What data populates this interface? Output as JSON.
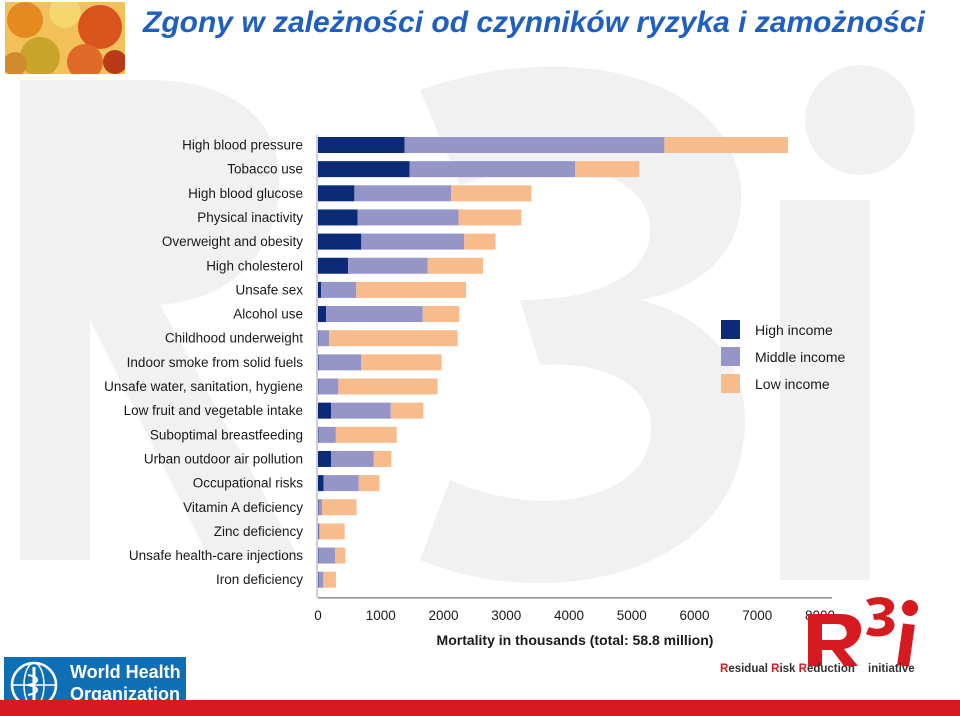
{
  "title": "Zgony w zależności od czynników ryzyka i zamożności",
  "colors": {
    "high": "#0b2a78",
    "middle": "#9595c8",
    "low": "#f8bb8c",
    "title": "#1f5fbf",
    "brand_red": "#d71920"
  },
  "logos": {
    "who_line1": "World Health",
    "who_line2": "Organization",
    "r3i_caption_parts": [
      "R",
      "esidual ",
      "R",
      "isk ",
      "R",
      "eduction"
    ],
    "r3i_initiative": "initiative"
  },
  "chart_data": {
    "type": "bar",
    "orientation": "horizontal",
    "stacked": true,
    "categories": [
      "High blood pressure",
      "Tobacco use",
      "High blood glucose",
      "Physical inactivity",
      "Overweight and obesity",
      "High cholesterol",
      "Unsafe sex",
      "Alcohol use",
      "Childhood underweight",
      "Indoor smoke from solid fuels",
      "Unsafe water, sanitation, hygiene",
      "Low fruit and vegetable intake",
      "Suboptimal breastfeeding",
      "Urban outdoor air pollution",
      "Occupational risks",
      "Vitamin A deficiency",
      "Zinc deficiency",
      "Unsafe health-care injections",
      "Iron deficiency"
    ],
    "series": [
      {
        "name": "High income",
        "values": [
          1380,
          1460,
          580,
          630,
          690,
          480,
          50,
          130,
          5,
          10,
          5,
          210,
          5,
          210,
          90,
          5,
          5,
          5,
          5
        ]
      },
      {
        "name": "Middle income",
        "values": [
          4140,
          2640,
          1540,
          1610,
          1640,
          1270,
          560,
          1540,
          170,
          680,
          320,
          950,
          280,
          680,
          560,
          60,
          20,
          270,
          80
        ]
      },
      {
        "name": "Low income",
        "values": [
          1970,
          1020,
          1280,
          1000,
          500,
          880,
          1750,
          580,
          2050,
          1280,
          1580,
          520,
          970,
          280,
          330,
          550,
          400,
          160,
          200
        ]
      }
    ],
    "xlabel": "Mortality in thousands (total: 58.8 million)",
    "xlim": [
      0,
      8000
    ],
    "xticks": [
      0,
      1000,
      2000,
      3000,
      4000,
      5000,
      6000,
      7000,
      8000
    ],
    "legend_position": "right",
    "grid": false
  }
}
